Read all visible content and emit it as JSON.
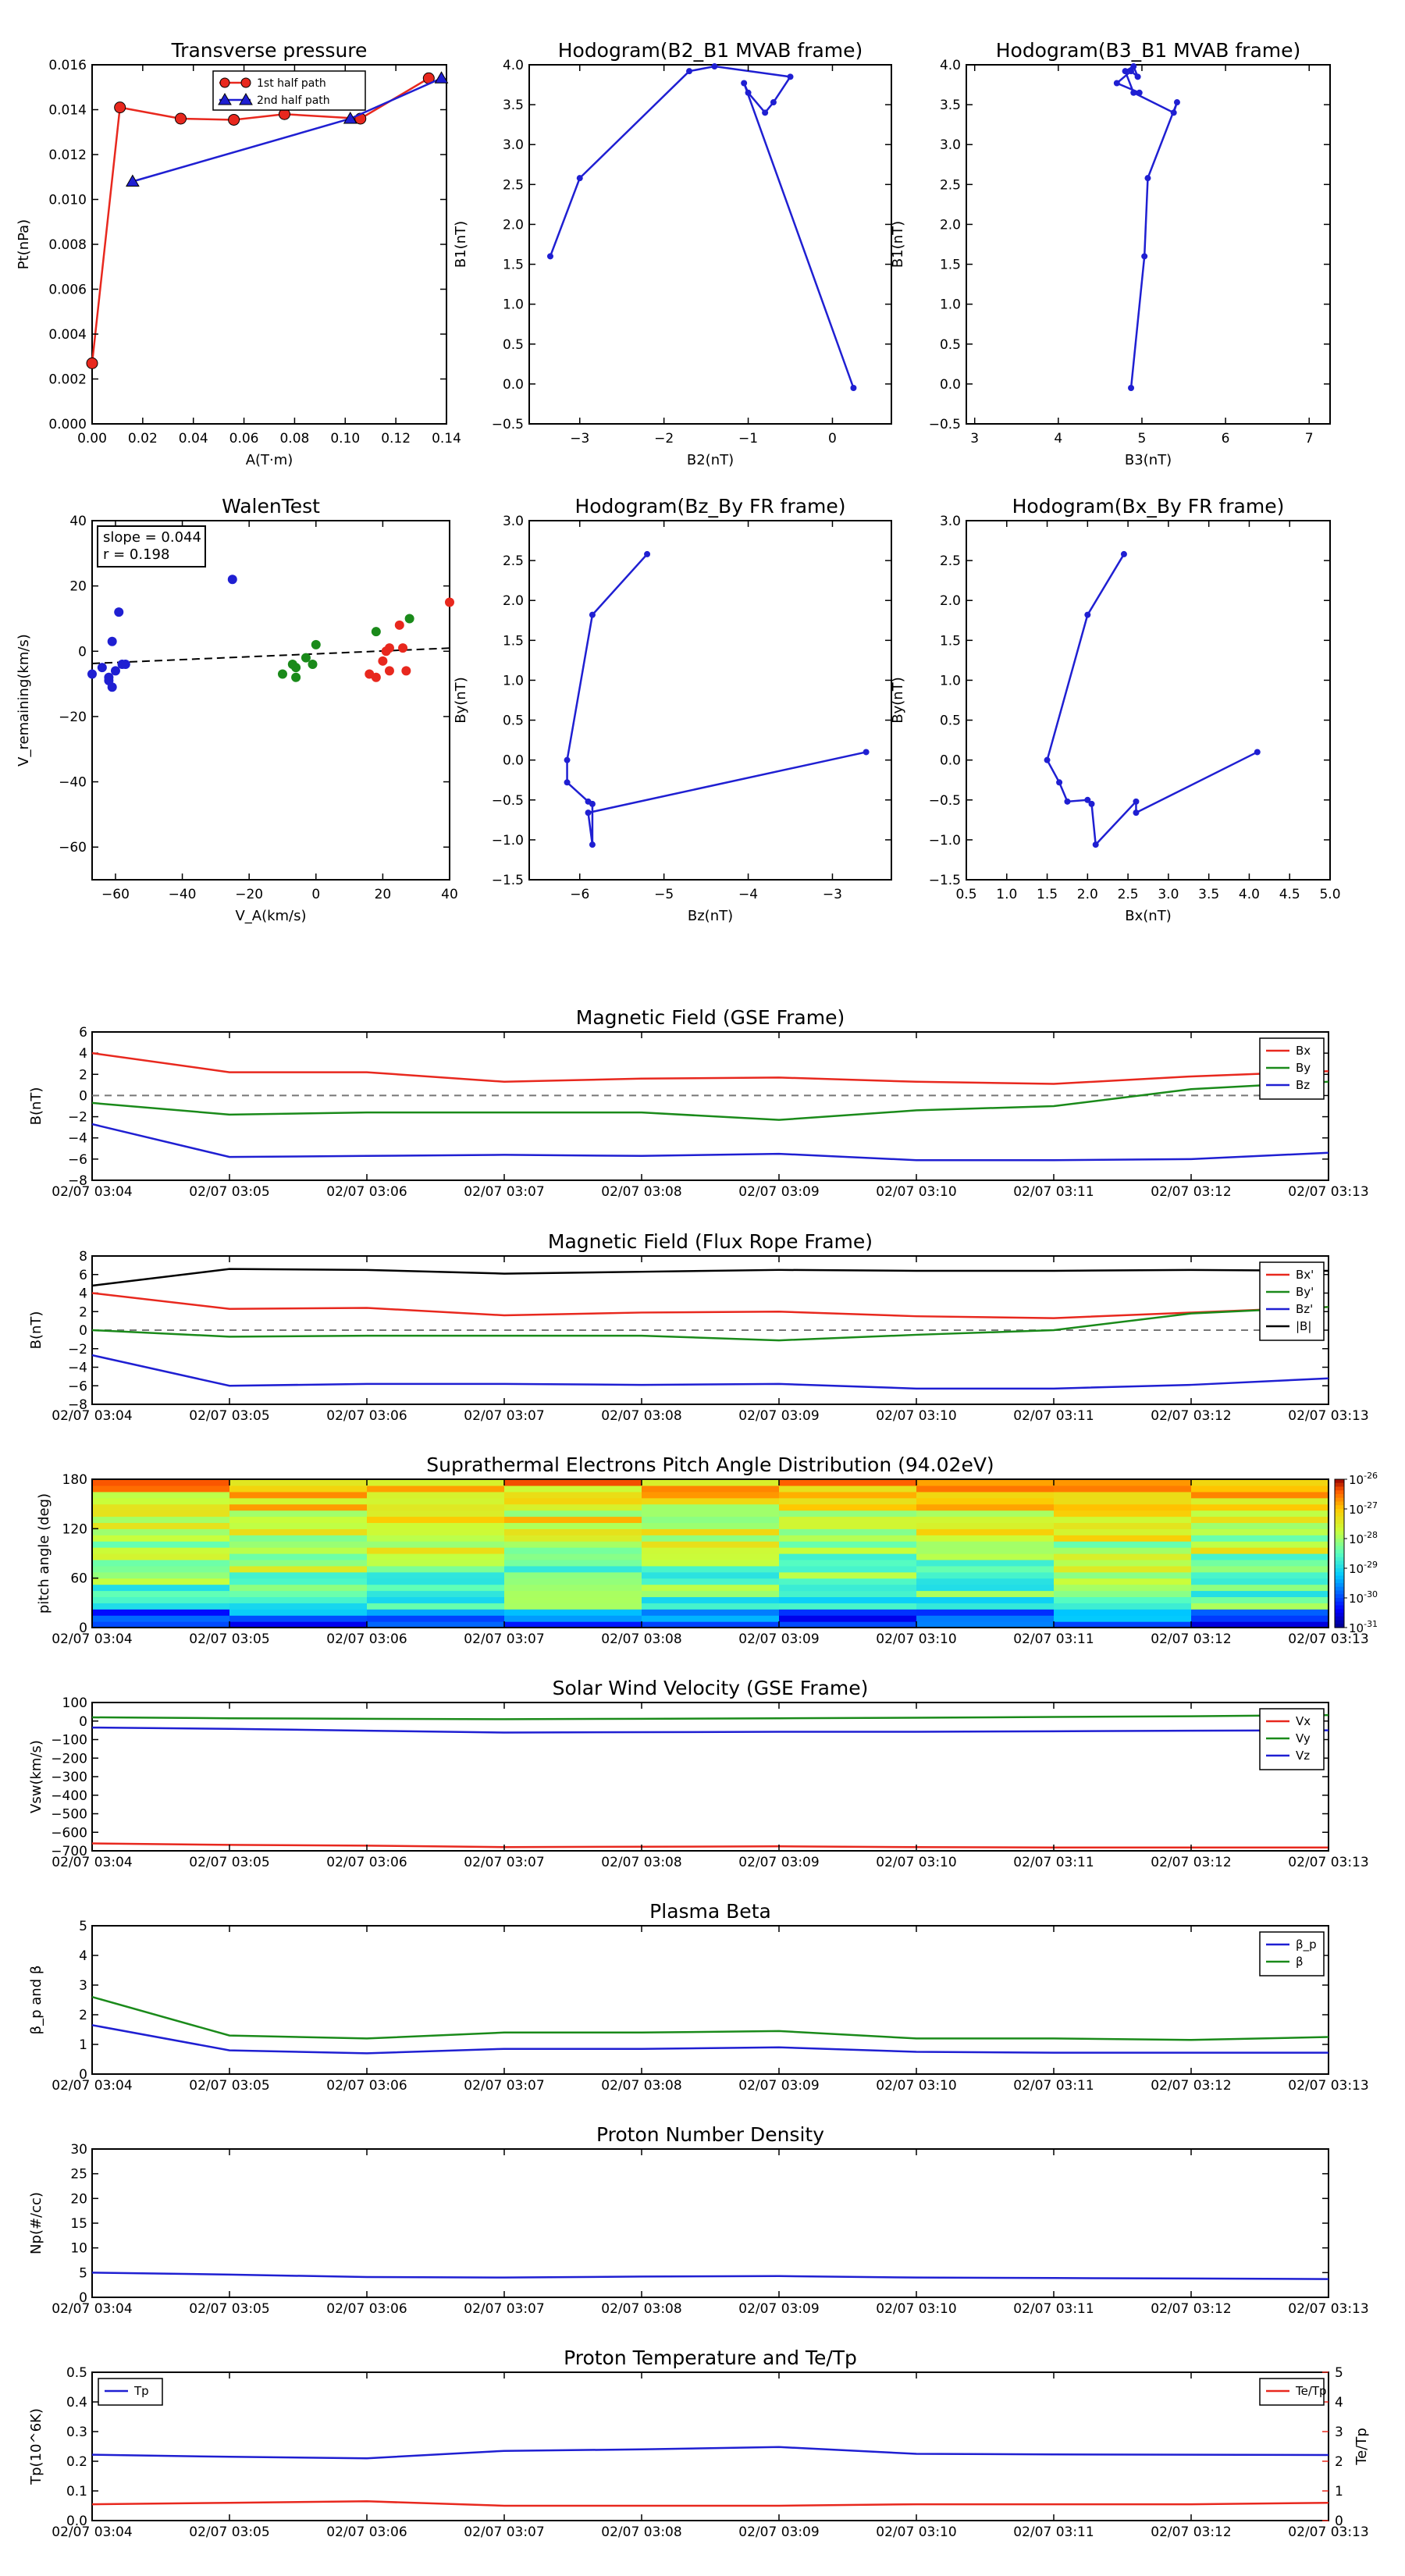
{
  "time_ticks": [
    "02/07 03:04",
    "02/07 03:05",
    "02/07 03:06",
    "02/07 03:07",
    "02/07 03:08",
    "02/07 03:09",
    "02/07 03:10",
    "02/07 03:11",
    "02/07 03:12",
    "02/07 03:13"
  ],
  "chart_data": [
    {
      "id": "transverse-pressure",
      "type": "line",
      "title": "Transverse pressure",
      "xlabel": "A(T·m)",
      "ylabel": "Pt(nPa)",
      "xlim": [
        0,
        0.14
      ],
      "ylim": [
        0,
        0.016
      ],
      "xticks": [
        0,
        0.02,
        0.04,
        0.06,
        0.08,
        0.1,
        0.12,
        0.14
      ],
      "xtick_labels": [
        "0.00",
        "0.02",
        "0.04",
        "0.06",
        "0.08",
        "0.10",
        "0.12",
        "0.14"
      ],
      "yticks": [
        0,
        0.002,
        0.004,
        0.006,
        0.008,
        0.01,
        0.012,
        0.014,
        0.016
      ],
      "ytick_labels": [
        "0.000",
        "0.002",
        "0.004",
        "0.006",
        "0.008",
        "0.010",
        "0.012",
        "0.014",
        "0.016"
      ],
      "legend": "top-center",
      "series": [
        {
          "name": "1st half path",
          "color": "#e8281e",
          "marker": "circle",
          "x": [
            0.0,
            0.011,
            0.035,
            0.056,
            0.076,
            0.106,
            0.133
          ],
          "y": [
            0.0027,
            0.0141,
            0.0136,
            0.01355,
            0.0138,
            0.0136,
            0.0154
          ]
        },
        {
          "name": "2nd half path",
          "color": "#1f1fd2",
          "marker": "triangle",
          "x": [
            0.016,
            0.102,
            0.138
          ],
          "y": [
            0.0108,
            0.0136,
            0.0154
          ]
        }
      ]
    },
    {
      "id": "hodogram-b2-b1",
      "type": "line",
      "title": "Hodogram(B2_B1 MVAB frame)",
      "xlabel": "B2(nT)",
      "ylabel": "B1(nT)",
      "xlim": [
        -3.6,
        0.7
      ],
      "ylim": [
        -0.5,
        4.0
      ],
      "xticks": [
        -3,
        -2,
        -1,
        0
      ],
      "xtick_labels": [
        "−3",
        "−2",
        "−1",
        "0"
      ],
      "yticks": [
        -0.5,
        0,
        0.5,
        1,
        1.5,
        2,
        2.5,
        3,
        3.5,
        4
      ],
      "ytick_labels": [
        "−0.5",
        "0.0",
        "0.5",
        "1.0",
        "1.5",
        "2.0",
        "2.5",
        "3.0",
        "3.5",
        "4.0"
      ],
      "series": [
        {
          "color": "#1f1fd2",
          "marker": "dot",
          "x": [
            -3.35,
            -3.0,
            -1.7,
            -1.4,
            -0.5,
            -0.7,
            -0.8,
            -1.0,
            -1.05,
            0.25
          ],
          "y": [
            1.6,
            2.58,
            3.92,
            3.98,
            3.85,
            3.53,
            3.4,
            3.65,
            3.77,
            -0.05
          ]
        }
      ]
    },
    {
      "id": "hodogram-b3-b1",
      "type": "line",
      "title": "Hodogram(B3_B1 MVAB frame)",
      "xlabel": "B3(nT)",
      "ylabel": "B1(nT)",
      "xlim": [
        2.9,
        7.25
      ],
      "ylim": [
        -0.5,
        4.0
      ],
      "xticks": [
        3,
        4,
        5,
        6,
        7
      ],
      "xtick_labels": [
        "3",
        "4",
        "5",
        "6",
        "7"
      ],
      "yticks": [
        -0.5,
        0,
        0.5,
        1,
        1.5,
        2,
        2.5,
        3,
        3.5,
        4
      ],
      "ytick_labels": [
        "−0.5",
        "0.0",
        "0.5",
        "1.0",
        "1.5",
        "2.0",
        "2.5",
        "3.0",
        "3.5",
        "4.0"
      ],
      "series": [
        {
          "color": "#1f1fd2",
          "marker": "dot",
          "x": [
            4.87,
            5.03,
            5.07,
            5.42,
            5.38,
            4.9,
            4.8,
            4.9,
            4.95,
            4.87,
            4.7,
            4.97
          ],
          "y": [
            -0.05,
            1.6,
            2.58,
            3.53,
            3.4,
            3.65,
            3.92,
            3.98,
            3.85,
            3.92,
            3.77,
            3.65
          ]
        }
      ]
    },
    {
      "id": "walen-test",
      "type": "scatter",
      "title": "WalenTest",
      "xlabel": "V_A(km/s)",
      "ylabel": "V_remaining(km/s)",
      "xlim": [
        -67,
        40
      ],
      "ylim": [
        -70,
        40
      ],
      "xticks": [
        -60,
        -40,
        -20,
        0,
        20,
        40
      ],
      "xtick_labels": [
        "−60",
        "−40",
        "−20",
        "0",
        "20",
        "40"
      ],
      "yticks": [
        -60,
        -40,
        -20,
        0,
        20,
        40
      ],
      "ytick_labels": [
        "−60",
        "−40",
        "−20",
        "0",
        "20",
        "40"
      ],
      "annotation_lines": [
        "slope = 0.044",
        "r = 0.198"
      ],
      "fit": {
        "slope": 0.044,
        "intercept": -0.8
      },
      "series": [
        {
          "color": "#1f1fd2",
          "x": [
            -67,
            -64,
            -62,
            -61,
            -61,
            -60,
            -59,
            -58,
            -57,
            -62,
            -25
          ],
          "y": [
            -7,
            -5,
            -8,
            -11,
            3,
            -6,
            12,
            -4,
            -4,
            -9,
            22
          ]
        },
        {
          "color": "#1a8a1a",
          "x": [
            -10,
            -7,
            -6,
            -6,
            -3,
            -1,
            0,
            18,
            28
          ],
          "y": [
            -7,
            -4,
            -5,
            -8,
            -2,
            -4,
            2,
            6,
            10
          ]
        },
        {
          "color": "#e8281e",
          "x": [
            16,
            18,
            20,
            21,
            22,
            22,
            25,
            26,
            27,
            40
          ],
          "y": [
            -7,
            -8,
            -3,
            0,
            -6,
            1,
            8,
            1,
            -6,
            15
          ]
        }
      ]
    },
    {
      "id": "hodogram-bz-by",
      "type": "line",
      "title": "Hodogram(Bz_By FR frame)",
      "xlabel": "Bz(nT)",
      "ylabel": "By(nT)",
      "xlim": [
        -6.6,
        -2.3
      ],
      "ylim": [
        -1.5,
        3.0
      ],
      "xticks": [
        -6,
        -5,
        -4,
        -3
      ],
      "xtick_labels": [
        "−6",
        "−5",
        "−4",
        "−3"
      ],
      "yticks": [
        -1.5,
        -1,
        -0.5,
        0,
        0.5,
        1,
        1.5,
        2,
        2.5,
        3
      ],
      "ytick_labels": [
        "−1.5",
        "−1.0",
        "−0.5",
        "0.0",
        "0.5",
        "1.0",
        "1.5",
        "2.0",
        "2.5",
        "3.0"
      ],
      "series": [
        {
          "color": "#1f1fd2",
          "marker": "dot",
          "x": [
            -5.2,
            -5.85,
            -6.15,
            -6.15,
            -5.9,
            -5.85,
            -5.85,
            -5.9,
            -2.6
          ],
          "y": [
            2.58,
            1.82,
            0.0,
            -0.28,
            -0.52,
            -0.55,
            -1.06,
            -0.66,
            0.1
          ]
        }
      ]
    },
    {
      "id": "hodogram-bx-by",
      "type": "line",
      "title": "Hodogram(Bx_By FR frame)",
      "xlabel": "Bx(nT)",
      "ylabel": "By(nT)",
      "xlim": [
        0.5,
        5.0
      ],
      "ylim": [
        -1.5,
        3.0
      ],
      "xticks": [
        0.5,
        1.0,
        1.5,
        2.0,
        2.5,
        3.0,
        3.5,
        4.0,
        4.5,
        5.0
      ],
      "xtick_labels": [
        "0.5",
        "1.0",
        "1.5",
        "2.0",
        "2.5",
        "3.0",
        "3.5",
        "4.0",
        "4.5",
        "5.0"
      ],
      "yticks": [
        -1.5,
        -1,
        -0.5,
        0,
        0.5,
        1,
        1.5,
        2,
        2.5,
        3
      ],
      "ytick_labels": [
        "−1.5",
        "−1.0",
        "−0.5",
        "0.0",
        "0.5",
        "1.0",
        "1.5",
        "2.0",
        "2.5",
        "3.0"
      ],
      "series": [
        {
          "color": "#1f1fd2",
          "marker": "dot",
          "x": [
            2.45,
            2.0,
            1.5,
            1.65,
            1.75,
            2.0,
            2.05,
            2.1,
            2.6,
            2.6,
            4.1
          ],
          "y": [
            2.58,
            1.82,
            0.0,
            -0.28,
            -0.52,
            -0.5,
            -0.55,
            -1.06,
            -0.52,
            -0.66,
            0.1
          ]
        }
      ]
    },
    {
      "id": "mag-gse",
      "type": "line",
      "title": "Magnetic Field (GSE Frame)",
      "ylabel": "B(nT)",
      "ylim": [
        -8,
        6
      ],
      "yticks": [
        -8,
        -6,
        -4,
        -2,
        0,
        2,
        4,
        6
      ],
      "ytick_labels": [
        "−8",
        "−6",
        "−4",
        "−2",
        "0",
        "2",
        "4",
        "6"
      ],
      "zero_line": true,
      "legend": "top-right",
      "series": [
        {
          "name": "Bx",
          "color": "#e8281e",
          "values": [
            4.0,
            2.2,
            2.2,
            1.3,
            1.6,
            1.7,
            1.3,
            1.1,
            1.8,
            2.3
          ]
        },
        {
          "name": "By",
          "color": "#1a8a1a",
          "values": [
            -0.7,
            -1.8,
            -1.6,
            -1.6,
            -1.6,
            -2.3,
            -1.4,
            -1.0,
            0.6,
            1.3
          ]
        },
        {
          "name": "Bz",
          "color": "#1f1fd2",
          "values": [
            -2.7,
            -5.8,
            -5.7,
            -5.6,
            -5.7,
            -5.5,
            -6.1,
            -6.1,
            -6.0,
            -5.4
          ]
        }
      ]
    },
    {
      "id": "mag-fr",
      "type": "line",
      "title": "Magnetic Field (Flux Rope Frame)",
      "ylabel": "B(nT)",
      "ylim": [
        -8,
        8
      ],
      "yticks": [
        -8,
        -6,
        -4,
        -2,
        0,
        2,
        4,
        6,
        8
      ],
      "ytick_labels": [
        "−8",
        "−6",
        "−4",
        "−2",
        "0",
        "2",
        "4",
        "6",
        "8"
      ],
      "zero_line": true,
      "legend": "top-right",
      "series": [
        {
          "name": "Bx'",
          "color": "#e8281e",
          "values": [
            4.0,
            2.3,
            2.4,
            1.6,
            1.9,
            2.0,
            1.5,
            1.3,
            1.9,
            2.5
          ]
        },
        {
          "name": "By'",
          "color": "#1a8a1a",
          "values": [
            0.0,
            -0.7,
            -0.6,
            -0.6,
            -0.6,
            -1.1,
            -0.5,
            0.0,
            1.8,
            2.5
          ]
        },
        {
          "name": "Bz'",
          "color": "#1f1fd2",
          "values": [
            -2.7,
            -6.0,
            -5.8,
            -5.8,
            -5.9,
            -5.8,
            -6.3,
            -6.3,
            -5.9,
            -5.2
          ]
        },
        {
          "name": "|B|",
          "color": "#000000",
          "values": [
            4.8,
            6.6,
            6.5,
            6.1,
            6.3,
            6.5,
            6.4,
            6.4,
            6.5,
            6.4
          ]
        }
      ]
    },
    {
      "id": "pad",
      "type": "heatmap",
      "title": "Suprathermal Electrons Pitch Angle Distribution (94.02eV)",
      "ylabel": "pitch angle (deg)",
      "ylim": [
        0,
        180
      ],
      "yticks": [
        0,
        60,
        120,
        180
      ],
      "ytick_labels": [
        "0",
        "60",
        "120",
        "180"
      ],
      "colorbar_ticks": [
        "-26",
        "-27",
        "-28",
        "-29",
        "-30",
        "-31"
      ]
    },
    {
      "id": "vsw",
      "type": "line",
      "title": "Solar Wind Velocity (GSE Frame)",
      "ylabel": "Vsw(km/s)",
      "ylim": [
        -700,
        100
      ],
      "yticks": [
        -700,
        -600,
        -500,
        -400,
        -300,
        -200,
        -100,
        0,
        100
      ],
      "ytick_labels": [
        "−700",
        "−600",
        "−500",
        "−400",
        "−300",
        "−200",
        "−100",
        "0",
        "100"
      ],
      "legend": "top-right",
      "series": [
        {
          "name": "Vx",
          "color": "#e8281e",
          "values": [
            -660,
            -668,
            -672,
            -680,
            -678,
            -676,
            -680,
            -682,
            -682,
            -682
          ]
        },
        {
          "name": "Vy",
          "color": "#1a8a1a",
          "values": [
            20,
            15,
            12,
            10,
            12,
            15,
            18,
            22,
            26,
            32
          ]
        },
        {
          "name": "Vz",
          "color": "#1f1fd2",
          "values": [
            -35,
            -42,
            -52,
            -62,
            -60,
            -58,
            -58,
            -55,
            -52,
            -50
          ]
        }
      ]
    },
    {
      "id": "beta",
      "type": "line",
      "title": "Plasma Beta",
      "ylabel": "β_p and β",
      "ylim": [
        0,
        5
      ],
      "yticks": [
        0,
        1,
        2,
        3,
        4,
        5
      ],
      "ytick_labels": [
        "0",
        "1",
        "2",
        "3",
        "4",
        "5"
      ],
      "legend": "top-right",
      "series": [
        {
          "name": "β_p",
          "color": "#1f1fd2",
          "values": [
            1.65,
            0.8,
            0.7,
            0.85,
            0.85,
            0.9,
            0.75,
            0.72,
            0.72,
            0.72
          ]
        },
        {
          "name": "β",
          "color": "#1a8a1a",
          "values": [
            2.6,
            1.3,
            1.2,
            1.4,
            1.4,
            1.45,
            1.2,
            1.2,
            1.15,
            1.25
          ]
        }
      ]
    },
    {
      "id": "density",
      "type": "line",
      "title": "Proton Number Density",
      "ylabel": "Np(#/cc)",
      "ylim": [
        0,
        30
      ],
      "yticks": [
        0,
        5,
        10,
        15,
        20,
        25,
        30
      ],
      "ytick_labels": [
        "0",
        "5",
        "10",
        "15",
        "20",
        "25",
        "30"
      ],
      "series": [
        {
          "color": "#1f1fd2",
          "values": [
            5.0,
            4.6,
            4.1,
            4.0,
            4.2,
            4.3,
            4.0,
            3.9,
            3.8,
            3.7
          ]
        }
      ]
    },
    {
      "id": "temp",
      "type": "line",
      "title": "Proton Temperature and Te/Tp",
      "ylabel": "Tp(10^6K)",
      "ylabel_right": "Te/Tp",
      "ylim": [
        0,
        0.5
      ],
      "yticks": [
        0,
        0.1,
        0.2,
        0.3,
        0.4,
        0.5
      ],
      "ytick_labels": [
        "0.0",
        "0.1",
        "0.2",
        "0.3",
        "0.4",
        "0.5"
      ],
      "ylim_right": [
        0,
        5
      ],
      "yticks_right": [
        0,
        1,
        2,
        3,
        4,
        5
      ],
      "ytick_labels_right": [
        "0",
        "1",
        "2",
        "3",
        "4",
        "5"
      ],
      "series": [
        {
          "name": "Tp",
          "color": "#1f1fd2",
          "axis": "left",
          "legend": "top-left",
          "values": [
            0.222,
            0.215,
            0.21,
            0.235,
            0.24,
            0.248,
            0.225,
            0.223,
            0.222,
            0.221
          ]
        },
        {
          "name": "Te/Tp",
          "color": "#e8281e",
          "axis": "right",
          "legend": "top-right",
          "values": [
            0.55,
            0.6,
            0.65,
            0.5,
            0.5,
            0.5,
            0.55,
            0.55,
            0.55,
            0.6
          ]
        }
      ]
    }
  ]
}
